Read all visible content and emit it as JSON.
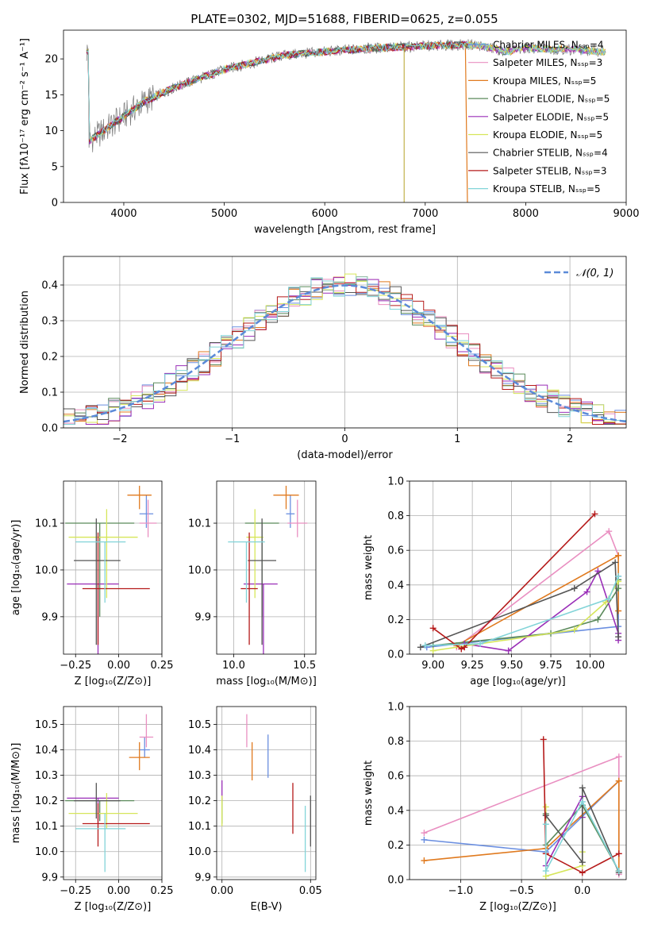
{
  "colors": {
    "Chabrier MILES": "#6a8ee0",
    "Salpeter MILES": "#e98fc1",
    "Kroupa MILES": "#e07a1f",
    "Chabrier ELODIE": "#5b8a5b",
    "Salpeter ELODIE": "#9a2fb8",
    "Kroupa ELODIE": "#d6e65a",
    "Chabrier STELIB": "#555555",
    "Salpeter STELIB": "#b51a1a",
    "Kroupa STELIB": "#82d4d8"
  },
  "chart_data": [
    {
      "id": "spectrum",
      "type": "line",
      "title": "PLATE=0302, MJD=51688, FIBERID=0625, z=0.055",
      "xlabel": "wavelength [Angstrom, rest frame]",
      "ylabel": "Flux [fλ10⁻¹⁷ erg cm⁻² s⁻¹ A⁻¹]",
      "xlim": [
        3400,
        9000
      ],
      "ylim": [
        0,
        24
      ],
      "xticks": [
        "4000",
        "5000",
        "6000",
        "7000",
        "8000",
        "9000"
      ],
      "yticks": [
        "0",
        "5",
        "10",
        "15",
        "20"
      ],
      "continuum": [
        [
          3650,
          8.5
        ],
        [
          3750,
          9.5
        ],
        [
          3850,
          10.5
        ],
        [
          4000,
          12.0
        ],
        [
          4200,
          14.0
        ],
        [
          4500,
          16.0
        ],
        [
          4800,
          17.5
        ],
        [
          5000,
          18.5
        ],
        [
          5300,
          19.5
        ],
        [
          5600,
          20.5
        ],
        [
          6000,
          21.0
        ],
        [
          6500,
          21.5
        ],
        [
          7000,
          21.8
        ],
        [
          7500,
          22.0
        ],
        [
          7800,
          21.0
        ],
        [
          8000,
          21.5
        ],
        [
          8500,
          21.3
        ],
        [
          8800,
          21.0
        ]
      ],
      "legend": [
        "Chabrier MILES, Nₛₛₚ=4",
        "Salpeter MILES, Nₛₛₚ=3",
        "Kroupa MILES, Nₛₛₚ=5",
        "Chabrier ELODIE, Nₛₛₚ=5",
        "Salpeter ELODIE, Nₛₛₚ=5",
        "Kroupa ELODIE, Nₛₛₚ=5",
        "Chabrier STELIB, Nₛₛₚ=4",
        "Salpeter STELIB, Nₛₛₚ=3",
        "Kroupa STELIB, Nₛₛₚ=5"
      ]
    },
    {
      "id": "residuals",
      "type": "line",
      "xlabel": "(data-model)/error",
      "ylabel": "Normed distribution",
      "xlim": [
        -2.5,
        2.5
      ],
      "ylim": [
        0,
        0.48
      ],
      "xticks": [
        "−2",
        "−1",
        "0",
        "1",
        "2"
      ],
      "yticks": [
        "0.0",
        "0.1",
        "0.2",
        "0.3",
        "0.4"
      ],
      "legend": [
        "𝒩(0, 1)"
      ],
      "bin_width": 0.1
    },
    {
      "id": "age-vs-Z",
      "type": "scatter",
      "xlabel": "Z [log₁₀(Z/Z⊙)]",
      "ylabel": "age  [log₁₀(age/yr)]",
      "xlim": [
        -0.32,
        0.25
      ],
      "ylim": [
        9.82,
        10.19
      ],
      "xticks": [
        "−0.25",
        "0.00",
        "0.25"
      ],
      "yticks": [
        "9.9",
        "10.0",
        "10.1"
      ],
      "points": [
        {
          "model": "Chabrier MILES",
          "x": 0.16,
          "y": 10.12,
          "xerr": [
            0.04,
            0.04
          ],
          "yerr": [
            0.03,
            0.04
          ]
        },
        {
          "model": "Salpeter MILES",
          "x": 0.17,
          "y": 10.1,
          "xerr": [
            0.05,
            0.05
          ],
          "yerr": [
            0.03,
            0.05
          ]
        },
        {
          "model": "Kroupa MILES",
          "x": 0.12,
          "y": 10.16,
          "xerr": [
            0.07,
            0.07
          ],
          "yerr": [
            0.03,
            0.02
          ]
        },
        {
          "model": "Chabrier ELODIE",
          "x": -0.11,
          "y": 10.1,
          "xerr": [
            0.2,
            0.2
          ],
          "yerr": [
            0.2,
            0.0
          ]
        },
        {
          "model": "Salpeter ELODIE",
          "x": -0.12,
          "y": 9.97,
          "xerr": [
            0.18,
            0.12
          ],
          "yerr": [
            0.15,
            0.0
          ]
        },
        {
          "model": "Kroupa ELODIE",
          "x": -0.07,
          "y": 10.07,
          "xerr": [
            0.22,
            0.18
          ],
          "yerr": [
            0.13,
            0.06
          ]
        },
        {
          "model": "Chabrier STELIB",
          "x": -0.13,
          "y": 10.02,
          "xerr": [
            0.13,
            0.14
          ],
          "yerr": [
            0.18,
            0.09
          ]
        },
        {
          "model": "Salpeter STELIB",
          "x": -0.12,
          "y": 9.96,
          "xerr": [
            0.09,
            0.3
          ],
          "yerr": [
            0.12,
            0.12
          ]
        },
        {
          "model": "Kroupa STELIB",
          "x": -0.08,
          "y": 10.06,
          "xerr": [
            0.17,
            0.12
          ],
          "yerr": [
            0.13,
            0.0
          ]
        }
      ]
    },
    {
      "id": "age-vs-mass",
      "type": "scatter",
      "xlabel": "mass [log₁₀(M/M⊙)]",
      "xlim": [
        9.88,
        10.58
      ],
      "ylim": [
        9.82,
        10.19
      ],
      "xticks": [
        "10.0",
        "10.5"
      ],
      "yticks": [
        "9.9",
        "10.0",
        "10.1"
      ],
      "points": [
        {
          "model": "Chabrier MILES",
          "x": 10.4,
          "y": 10.12,
          "xerr": [
            0.03,
            0.03
          ],
          "yerr": [
            0.03,
            0.04
          ]
        },
        {
          "model": "Salpeter MILES",
          "x": 10.45,
          "y": 10.1,
          "xerr": [
            0.07,
            0.07
          ],
          "yerr": [
            0.03,
            0.05
          ]
        },
        {
          "model": "Kroupa MILES",
          "x": 10.37,
          "y": 10.16,
          "xerr": [
            0.09,
            0.09
          ],
          "yerr": [
            0.03,
            0.02
          ]
        },
        {
          "model": "Chabrier ELODIE",
          "x": 10.2,
          "y": 10.1,
          "xerr": [
            0.12,
            0.12
          ],
          "yerr": [
            0.2,
            0.0
          ]
        },
        {
          "model": "Salpeter ELODIE",
          "x": 10.21,
          "y": 9.97,
          "xerr": [
            0.14,
            0.1
          ],
          "yerr": [
            0.15,
            0.0
          ]
        },
        {
          "model": "Kroupa ELODIE",
          "x": 10.15,
          "y": 10.07,
          "xerr": [
            0.06,
            0.06
          ],
          "yerr": [
            0.13,
            0.06
          ]
        },
        {
          "model": "Chabrier STELIB",
          "x": 10.2,
          "y": 10.02,
          "xerr": [
            0.1,
            0.1
          ],
          "yerr": [
            0.18,
            0.09
          ]
        },
        {
          "model": "Salpeter STELIB",
          "x": 10.11,
          "y": 9.96,
          "xerr": [
            0.06,
            0.06
          ],
          "yerr": [
            0.12,
            0.12
          ]
        },
        {
          "model": "Kroupa STELIB",
          "x": 10.09,
          "y": 10.06,
          "xerr": [
            0.13,
            0.13
          ],
          "yerr": [
            0.13,
            0.0
          ]
        }
      ]
    },
    {
      "id": "weight-vs-age",
      "type": "line",
      "xlabel": "age  [log₁₀(age/yr)]",
      "ylabel": "mass weight",
      "xlim": [
        8.85,
        10.23
      ],
      "ylim": [
        0,
        1.0
      ],
      "xticks": [
        "9.00",
        "9.25",
        "9.50",
        "9.75",
        "10.00"
      ],
      "yticks": [
        "0.0",
        "0.2",
        "0.4",
        "0.6",
        "0.8",
        "1.0"
      ],
      "series": [
        {
          "model": "Chabrier MILES",
          "x": [
            8.96,
            10.18,
            10.18
          ],
          "y": [
            0.04,
            0.16,
            0.45
          ]
        },
        {
          "model": "Salpeter MILES",
          "x": [
            9.15,
            10.12,
            10.18
          ],
          "y": [
            0.04,
            0.71,
            0.57
          ]
        },
        {
          "model": "Kroupa MILES",
          "x": [
            9.15,
            10.18,
            10.18
          ],
          "y": [
            0.05,
            0.57,
            0.25
          ]
        },
        {
          "model": "Chabrier ELODIE",
          "x": [
            9.0,
            9.75,
            10.05,
            10.18,
            10.18
          ],
          "y": [
            0.05,
            0.12,
            0.2,
            0.38,
            0.43
          ]
        },
        {
          "model": "Salpeter ELODIE",
          "x": [
            9.2,
            9.48,
            9.98,
            10.05,
            10.18,
            10.18
          ],
          "y": [
            0.06,
            0.02,
            0.36,
            0.48,
            0.12,
            0.08
          ]
        },
        {
          "model": "Kroupa ELODIE",
          "x": [
            9.0,
            9.9,
            10.1,
            10.18
          ],
          "y": [
            0.02,
            0.14,
            0.3,
            0.42
          ]
        },
        {
          "model": "Chabrier STELIB",
          "x": [
            8.92,
            9.9,
            10.16,
            10.18
          ],
          "y": [
            0.04,
            0.38,
            0.53,
            0.1
          ]
        },
        {
          "model": "Salpeter STELIB",
          "x": [
            9.0,
            9.18,
            9.2,
            10.03
          ],
          "y": [
            0.15,
            0.03,
            0.04,
            0.81
          ]
        },
        {
          "model": "Kroupa STELIB",
          "x": [
            8.95,
            9.3,
            10.12,
            10.18
          ],
          "y": [
            0.05,
            0.06,
            0.32,
            0.45
          ]
        }
      ]
    },
    {
      "id": "mass-vs-Z",
      "type": "scatter",
      "xlabel": "Z [log₁₀(Z/Z⊙)]",
      "ylabel": "mass [log₁₀(M/M⊙)]",
      "xlim": [
        -0.32,
        0.25
      ],
      "ylim": [
        9.89,
        10.57
      ],
      "xticks": [
        "−0.25",
        "0.00",
        "0.25"
      ],
      "yticks": [
        "9.9",
        "10.0",
        "10.1",
        "10.2",
        "10.3",
        "10.4",
        "10.5"
      ],
      "points": [
        {
          "model": "Chabrier MILES",
          "x": 0.15,
          "y": 10.4,
          "xerr": [
            0.03,
            0.03
          ],
          "yerr": [
            0.03,
            0.05
          ]
        },
        {
          "model": "Salpeter MILES",
          "x": 0.16,
          "y": 10.45,
          "xerr": [
            0.04,
            0.04
          ],
          "yerr": [
            0.04,
            0.09
          ]
        },
        {
          "model": "Kroupa MILES",
          "x": 0.12,
          "y": 10.37,
          "xerr": [
            0.06,
            0.06
          ],
          "yerr": [
            0.05,
            0.06
          ]
        },
        {
          "model": "Chabrier ELODIE",
          "x": -0.11,
          "y": 10.2,
          "xerr": [
            0.2,
            0.2
          ],
          "yerr": [
            0.08,
            0.0
          ]
        },
        {
          "model": "Salpeter ELODIE",
          "x": -0.12,
          "y": 10.21,
          "xerr": [
            0.18,
            0.12
          ],
          "yerr": [
            0.1,
            0.0
          ]
        },
        {
          "model": "Kroupa ELODIE",
          "x": -0.07,
          "y": 10.15,
          "xerr": [
            0.22,
            0.18
          ],
          "yerr": [
            0.06,
            0.08
          ]
        },
        {
          "model": "Chabrier STELIB",
          "x": -0.13,
          "y": 10.2,
          "xerr": [
            0.13,
            0.14
          ],
          "yerr": [
            0.07,
            0.07
          ]
        },
        {
          "model": "Salpeter STELIB",
          "x": -0.12,
          "y": 10.11,
          "xerr": [
            0.09,
            0.3
          ],
          "yerr": [
            0.09,
            0.08
          ]
        },
        {
          "model": "Kroupa STELIB",
          "x": -0.08,
          "y": 10.09,
          "xerr": [
            0.17,
            0.12
          ],
          "yerr": [
            0.17,
            0.06
          ]
        }
      ]
    },
    {
      "id": "mass-vs-EBV",
      "type": "scatter",
      "xlabel": "E(B-V)",
      "xlim": [
        -0.003,
        0.053
      ],
      "ylim": [
        9.89,
        10.57
      ],
      "xticks": [
        "0.00",
        "0.05"
      ],
      "yticks": [
        "9.9",
        "10.0",
        "10.1",
        "10.2",
        "10.3",
        "10.4",
        "10.5"
      ],
      "points": [
        {
          "model": "Chabrier MILES",
          "x": 0.026,
          "y": 10.37,
          "yerr": [
            0.08,
            0.09
          ]
        },
        {
          "model": "Salpeter MILES",
          "x": 0.014,
          "y": 10.47,
          "yerr": [
            0.06,
            0.07
          ]
        },
        {
          "model": "Kroupa MILES",
          "x": 0.017,
          "y": 10.36,
          "yerr": [
            0.08,
            0.07
          ]
        },
        {
          "model": "Chabrier ELODIE",
          "x": 0.0,
          "y": 10.15,
          "yerr": [
            0.04,
            0.06
          ]
        },
        {
          "model": "Salpeter ELODIE",
          "x": 0.0,
          "y": 10.24,
          "yerr": [
            0.04,
            0.04
          ]
        },
        {
          "model": "Kroupa ELODIE",
          "x": 0.0,
          "y": 10.16,
          "yerr": [
            0.06,
            0.06
          ]
        },
        {
          "model": "Chabrier STELIB",
          "x": 0.05,
          "y": 10.12,
          "yerr": [
            0.1,
            0.1
          ]
        },
        {
          "model": "Salpeter STELIB",
          "x": 0.04,
          "y": 10.17,
          "yerr": [
            0.1,
            0.1
          ]
        },
        {
          "model": "Kroupa STELIB",
          "x": 0.047,
          "y": 10.05,
          "yerr": [
            0.13,
            0.13
          ]
        }
      ]
    },
    {
      "id": "weight-vs-Z",
      "type": "line",
      "xlabel": "Z [log₁₀(Z/Z⊙)]",
      "ylabel": "mass weight",
      "xlim": [
        -1.42,
        0.36
      ],
      "ylim": [
        0,
        1.0
      ],
      "xticks": [
        "−1.0",
        "−0.5",
        "0.0"
      ],
      "yticks": [
        "0.0",
        "0.2",
        "0.4",
        "0.6",
        "0.8",
        "1.0"
      ],
      "series": [
        {
          "model": "Chabrier MILES",
          "x": [
            -1.3,
            -0.3,
            0.3
          ],
          "y": [
            0.23,
            0.16,
            0.57
          ]
        },
        {
          "model": "Salpeter MILES",
          "x": [
            -1.3,
            0.3,
            0.3
          ],
          "y": [
            0.27,
            0.71,
            0.03
          ]
        },
        {
          "model": "Kroupa MILES",
          "x": [
            -1.3,
            -0.3,
            0.3,
            0.3
          ],
          "y": [
            0.11,
            0.18,
            0.57,
            0.05
          ]
        },
        {
          "model": "Chabrier ELODIE",
          "x": [
            -0.3,
            -0.3,
            0.0,
            0.3
          ],
          "y": [
            0.38,
            0.2,
            0.43,
            0.05
          ]
        },
        {
          "model": "Salpeter ELODIE",
          "x": [
            -0.3,
            0.0,
            0.0
          ],
          "y": [
            0.08,
            0.48,
            0.36
          ]
        },
        {
          "model": "Kroupa ELODIE",
          "x": [
            -0.3,
            -0.3,
            0.0,
            0.0
          ],
          "y": [
            0.42,
            0.02,
            0.08,
            0.16
          ]
        },
        {
          "model": "Chabrier STELIB",
          "x": [
            -0.3,
            0.0,
            0.0,
            0.3
          ],
          "y": [
            0.37,
            0.1,
            0.53,
            0.04
          ]
        },
        {
          "model": "Salpeter STELIB",
          "x": [
            -0.32,
            -0.3,
            0.0,
            0.3
          ],
          "y": [
            0.81,
            0.15,
            0.04,
            0.15
          ]
        },
        {
          "model": "Kroupa STELIB",
          "x": [
            -0.3,
            -0.3,
            0.0,
            0.3
          ],
          "y": [
            0.32,
            0.05,
            0.45,
            0.05
          ]
        }
      ]
    }
  ]
}
